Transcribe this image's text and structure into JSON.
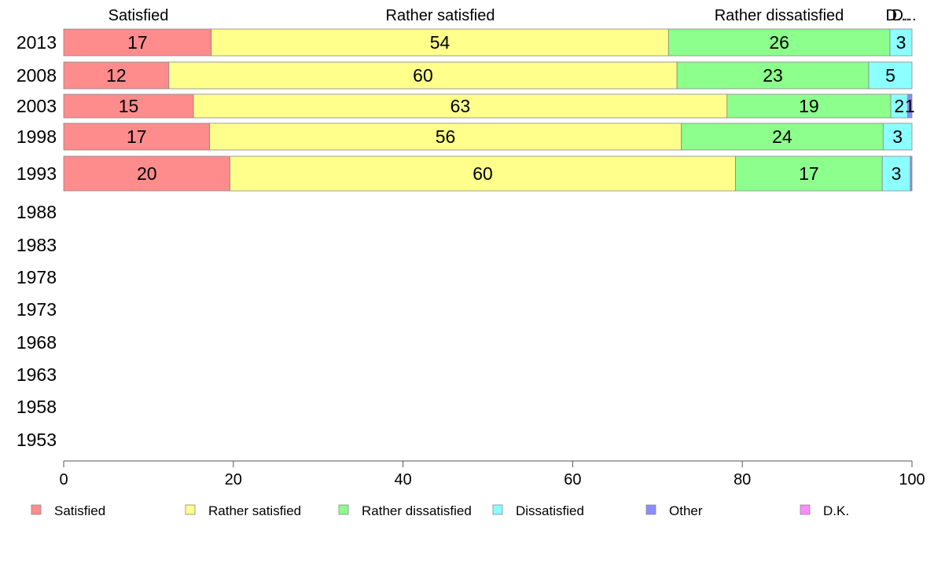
{
  "chart_data": {
    "type": "bar",
    "orientation": "horizontal",
    "stacked": true,
    "categories": [
      "2013",
      "2008",
      "2003",
      "1998",
      "1993",
      "1988",
      "1983",
      "1978",
      "1973",
      "1968",
      "1963",
      "1958",
      "1953"
    ],
    "series": [
      {
        "name": "Satisfied",
        "color": "#ff8c8c",
        "values": [
          17.4,
          12.4,
          15.3,
          17.2,
          19.6,
          null,
          null,
          null,
          null,
          null,
          null,
          null,
          null
        ],
        "labels": [
          "17",
          "12",
          "15",
          "17",
          "20",
          "",
          "",
          "",
          "",
          "",
          "",
          "",
          ""
        ]
      },
      {
        "name": "Rather satisfied",
        "color": "#ffff8c",
        "values": [
          53.9,
          59.9,
          62.9,
          55.6,
          59.6,
          null,
          null,
          null,
          null,
          null,
          null,
          null,
          null
        ],
        "labels": [
          "54",
          "60",
          "63",
          "56",
          "60",
          "",
          "",
          "",
          "",
          "",
          "",
          "",
          ""
        ]
      },
      {
        "name": "Rather dissatisfied",
        "color": "#8cff8c",
        "values": [
          26.1,
          22.6,
          19.3,
          23.8,
          17.3,
          null,
          null,
          null,
          null,
          null,
          null,
          null,
          null
        ],
        "labels": [
          "26",
          "23",
          "19",
          "24",
          "17",
          "",
          "",
          "",
          "",
          "",
          "",
          "",
          ""
        ]
      },
      {
        "name": "Dissatisfied",
        "color": "#8cffff",
        "values": [
          2.6,
          5.1,
          2.0,
          3.4,
          3.3,
          null,
          null,
          null,
          null,
          null,
          null,
          null,
          null
        ],
        "labels": [
          "3",
          "5",
          "2",
          "3",
          "3",
          "",
          "",
          "",
          "",
          "",
          "",
          "",
          ""
        ]
      },
      {
        "name": "Other",
        "color": "#8c8cff",
        "values": [
          0,
          0,
          0.5,
          0,
          0.2,
          null,
          null,
          null,
          null,
          null,
          null,
          null,
          null
        ],
        "labels": [
          "",
          "",
          "1",
          "",
          "",
          "",
          "",
          "",
          "",
          "",
          "",
          "",
          ""
        ]
      },
      {
        "name": "D.K.",
        "color": "#ff8cff",
        "values": [
          0,
          0,
          0,
          0,
          0,
          null,
          null,
          null,
          null,
          null,
          null,
          null,
          null
        ],
        "labels": [
          "",
          "",
          "",
          "",
          "",
          "",
          "",
          "",
          "",
          "",
          "",
          "",
          ""
        ]
      }
    ],
    "top_labels": [
      "Satisfied",
      "Rather satisfied",
      "Rather dissatisfied",
      "D...",
      "D..."
    ],
    "xlim": [
      0,
      100
    ],
    "xticks": [
      "0",
      "20",
      "40",
      "60",
      "80",
      "100"
    ],
    "grid": false,
    "legend_position": "bottom"
  }
}
